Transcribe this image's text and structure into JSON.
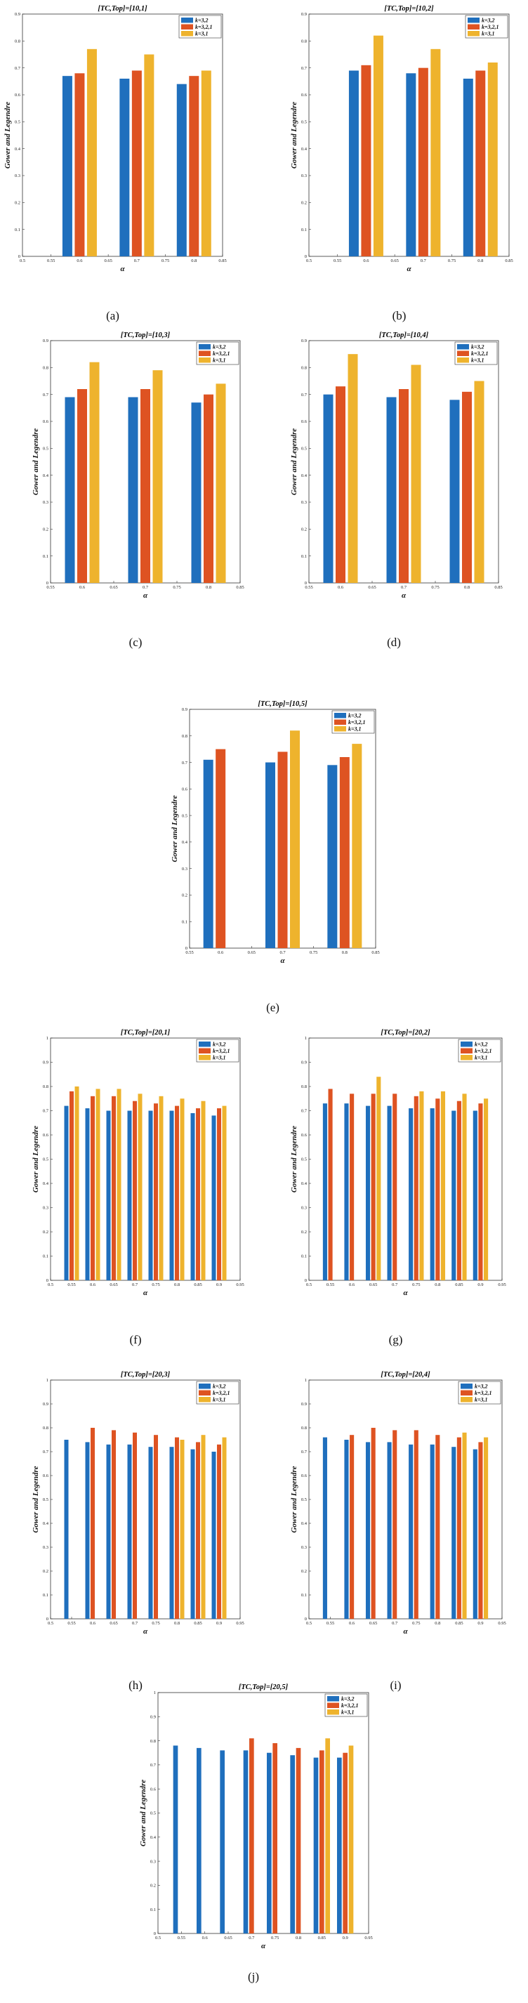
{
  "figure": {
    "colors": {
      "k32": "#1f6fbd",
      "k321": "#de5322",
      "k31": "#eeb32d",
      "axis": "#333333"
    },
    "legend": [
      "k=3,2",
      "k=3,2,1",
      "k=3,1"
    ]
  },
  "chart_data": [
    {
      "type": "bar",
      "caption": "(a)",
      "title": "[TC,Top]=[10,1]",
      "xlabel": "α",
      "ylabel": "Gower and Legendre",
      "xlim": [
        0.5,
        0.85
      ],
      "ylim": [
        0,
        0.9
      ],
      "xticks": [
        "0.5",
        "0.55",
        "0.6",
        "0.65",
        "0.7",
        "0.75",
        "0.8",
        "0.85"
      ],
      "yticks": [
        "0",
        "0.1",
        "0.2",
        "0.3",
        "0.4",
        "0.5",
        "0.6",
        "0.7",
        "0.8",
        "0.9"
      ],
      "categories": [
        0.6,
        0.7,
        0.8
      ],
      "series": [
        {
          "name": "k=3,2",
          "values": [
            0.67,
            0.66,
            0.64
          ]
        },
        {
          "name": "k=3,2,1",
          "values": [
            0.68,
            0.69,
            0.67
          ]
        },
        {
          "name": "k=3,1",
          "values": [
            0.77,
            0.75,
            0.69
          ]
        }
      ]
    },
    {
      "type": "bar",
      "caption": "(b)",
      "title": "[TC,Top]=[10,2]",
      "xlabel": "α",
      "ylabel": "Gower and Legendre",
      "xlim": [
        0.5,
        0.85
      ],
      "ylim": [
        0,
        0.9
      ],
      "xticks": [
        "0.5",
        "0.55",
        "0.6",
        "0.65",
        "0.7",
        "0.75",
        "0.8",
        "0.85"
      ],
      "yticks": [
        "0",
        "0.1",
        "0.2",
        "0.3",
        "0.4",
        "0.5",
        "0.6",
        "0.7",
        "0.8",
        "0.9"
      ],
      "categories": [
        0.6,
        0.7,
        0.8
      ],
      "series": [
        {
          "name": "k=3,2",
          "values": [
            0.69,
            0.68,
            0.66
          ]
        },
        {
          "name": "k=3,2,1",
          "values": [
            0.71,
            0.7,
            0.69
          ]
        },
        {
          "name": "k=3,1",
          "values": [
            0.82,
            0.77,
            0.72
          ]
        }
      ]
    },
    {
      "type": "bar",
      "caption": "(c)",
      "title": "[TC,Top]=[10,3]",
      "xlabel": "α",
      "ylabel": "Gower and Legendre",
      "xlim": [
        0.55,
        0.85
      ],
      "ylim": [
        0,
        0.9
      ],
      "xticks": [
        "0.55",
        "0.6",
        "0.65",
        "0.7",
        "0.75",
        "0.8",
        "0.85"
      ],
      "yticks": [
        "0",
        "0.1",
        "0.2",
        "0.3",
        "0.4",
        "0.5",
        "0.6",
        "0.7",
        "0.8",
        "0.9"
      ],
      "categories": [
        0.6,
        0.7,
        0.8
      ],
      "series": [
        {
          "name": "k=3,2",
          "values": [
            0.69,
            0.69,
            0.67
          ]
        },
        {
          "name": "k=3,2,1",
          "values": [
            0.72,
            0.72,
            0.7
          ]
        },
        {
          "name": "k=3,1",
          "values": [
            0.82,
            0.79,
            0.74
          ]
        }
      ]
    },
    {
      "type": "bar",
      "caption": "(d)",
      "title": "[TC,Top]=[10,4]",
      "xlabel": "α",
      "ylabel": "Gower and Legendre",
      "xlim": [
        0.55,
        0.85
      ],
      "ylim": [
        0,
        0.9
      ],
      "xticks": [
        "0.55",
        "0.6",
        "0.65",
        "0.7",
        "0.75",
        "0.8",
        "0.85"
      ],
      "yticks": [
        "0",
        "0.1",
        "0.2",
        "0.3",
        "0.4",
        "0.5",
        "0.6",
        "0.7",
        "0.8",
        "0.9"
      ],
      "categories": [
        0.6,
        0.7,
        0.8
      ],
      "series": [
        {
          "name": "k=3,2",
          "values": [
            0.7,
            0.69,
            0.68
          ]
        },
        {
          "name": "k=3,2,1",
          "values": [
            0.73,
            0.72,
            0.71
          ]
        },
        {
          "name": "k=3,1",
          "values": [
            0.85,
            0.81,
            0.75
          ]
        }
      ]
    },
    {
      "type": "bar",
      "caption": "(e)",
      "title": "[TC,Top]=[10,5]",
      "xlabel": "α",
      "ylabel": "Gower and Legendre",
      "xlim": [
        0.55,
        0.85
      ],
      "ylim": [
        0,
        0.9
      ],
      "xticks": [
        "0.55",
        "0.6",
        "0.65",
        "0.7",
        "0.75",
        "0.8",
        "0.85"
      ],
      "yticks": [
        "0",
        "0.1",
        "0.2",
        "0.3",
        "0.4",
        "0.5",
        "0.6",
        "0.7",
        "0.8",
        "0.9"
      ],
      "categories": [
        0.6,
        0.7,
        0.8
      ],
      "series": [
        {
          "name": "k=3,2",
          "values": [
            0.71,
            0.7,
            0.69
          ]
        },
        {
          "name": "k=3,2,1",
          "values": [
            0.75,
            0.74,
            0.72
          ]
        },
        {
          "name": "k=3,1",
          "values": [
            null,
            0.82,
            0.77
          ]
        }
      ]
    },
    {
      "type": "bar",
      "caption": "(f)",
      "title": "[TC,Top]=[20,1]",
      "xlabel": "α",
      "ylabel": "Gower and Legendre",
      "xlim": [
        0.5,
        0.95
      ],
      "ylim": [
        0,
        1
      ],
      "xticks": [
        "0.5",
        "0.55",
        "0.6",
        "0.65",
        "0.7",
        "0.75",
        "0.8",
        "0.85",
        "0.9",
        "0.95"
      ],
      "yticks": [
        "0",
        "0.1",
        "0.2",
        "0.3",
        "0.4",
        "0.5",
        "0.6",
        "0.7",
        "0.8",
        "0.9",
        "1"
      ],
      "categories": [
        0.55,
        0.6,
        0.65,
        0.7,
        0.75,
        0.8,
        0.85,
        0.9
      ],
      "series": [
        {
          "name": "k=3,2",
          "values": [
            0.72,
            0.71,
            0.7,
            0.7,
            0.7,
            0.7,
            0.69,
            0.68
          ]
        },
        {
          "name": "k=3,2,1",
          "values": [
            0.78,
            0.76,
            0.76,
            0.74,
            0.73,
            0.72,
            0.71,
            0.71
          ]
        },
        {
          "name": "k=3,1",
          "values": [
            0.8,
            0.79,
            0.79,
            0.77,
            0.76,
            0.75,
            0.74,
            0.72
          ]
        }
      ]
    },
    {
      "type": "bar",
      "caption": "(g)",
      "title": "[TC,Top]=[20,2]",
      "xlabel": "α",
      "ylabel": "Gower and Legendre",
      "xlim": [
        0.5,
        0.95
      ],
      "ylim": [
        0,
        1
      ],
      "xticks": [
        "0.5",
        "0.55",
        "0.6",
        "0.65",
        "0.7",
        "0.75",
        "0.8",
        "0.85",
        "0.9",
        "0.95"
      ],
      "yticks": [
        "0",
        "0.1",
        "0.2",
        "0.3",
        "0.4",
        "0.5",
        "0.6",
        "0.7",
        "0.8",
        "0.9",
        "1"
      ],
      "categories": [
        0.55,
        0.6,
        0.65,
        0.7,
        0.75,
        0.8,
        0.85,
        0.9
      ],
      "series": [
        {
          "name": "k=3,2",
          "values": [
            0.73,
            0.73,
            0.72,
            0.72,
            0.71,
            0.71,
            0.7,
            0.7
          ]
        },
        {
          "name": "k=3,2,1",
          "values": [
            0.79,
            0.77,
            0.77,
            0.77,
            0.76,
            0.75,
            0.74,
            0.73
          ]
        },
        {
          "name": "k=3,1",
          "values": [
            null,
            null,
            0.84,
            null,
            0.78,
            0.78,
            0.77,
            0.75
          ]
        }
      ]
    },
    {
      "type": "bar",
      "caption": "(h)",
      "title": "[TC,Top]=[20,3]",
      "xlabel": "α",
      "ylabel": "Gower and Legendre",
      "xlim": [
        0.5,
        0.95
      ],
      "ylim": [
        0,
        1
      ],
      "xticks": [
        "0.5",
        "0.55",
        "0.6",
        "0.65",
        "0.7",
        "0.75",
        "0.8",
        "0.85",
        "0.9",
        "0.95"
      ],
      "yticks": [
        "0",
        "0.1",
        "0.2",
        "0.3",
        "0.4",
        "0.5",
        "0.6",
        "0.7",
        "0.8",
        "0.9",
        "1"
      ],
      "categories": [
        0.55,
        0.6,
        0.65,
        0.7,
        0.75,
        0.8,
        0.85,
        0.9
      ],
      "series": [
        {
          "name": "k=3,2",
          "values": [
            0.75,
            0.74,
            0.73,
            0.73,
            0.72,
            0.72,
            0.71,
            0.7
          ]
        },
        {
          "name": "k=3,2,1",
          "values": [
            null,
            0.8,
            0.79,
            0.78,
            0.77,
            0.76,
            0.74,
            0.73
          ]
        },
        {
          "name": "k=3,1",
          "values": [
            null,
            null,
            null,
            null,
            null,
            0.75,
            0.77,
            0.76
          ]
        }
      ]
    },
    {
      "type": "bar",
      "caption": "(i)",
      "title": "[TC,Top]=[20,4]",
      "xlabel": "α",
      "ylabel": "Gower and Legendre",
      "xlim": [
        0.5,
        0.95
      ],
      "ylim": [
        0,
        1
      ],
      "xticks": [
        "0.5",
        "0.55",
        "0.6",
        "0.65",
        "0.7",
        "0.75",
        "0.8",
        "0.85",
        "0.9",
        "0.95"
      ],
      "yticks": [
        "0",
        "0.1",
        "0.2",
        "0.3",
        "0.4",
        "0.5",
        "0.6",
        "0.7",
        "0.8",
        "0.9",
        "1"
      ],
      "categories": [
        0.55,
        0.6,
        0.65,
        0.7,
        0.75,
        0.8,
        0.85,
        0.9
      ],
      "series": [
        {
          "name": "k=3,2",
          "values": [
            0.76,
            0.75,
            0.74,
            0.74,
            0.73,
            0.73,
            0.72,
            0.71
          ]
        },
        {
          "name": "k=3,2,1",
          "values": [
            null,
            0.77,
            0.8,
            0.79,
            0.79,
            0.77,
            0.76,
            0.74
          ]
        },
        {
          "name": "k=3,1",
          "values": [
            null,
            null,
            null,
            null,
            null,
            null,
            0.78,
            0.76
          ]
        }
      ]
    },
    {
      "type": "bar",
      "caption": "(j)",
      "title": "[TC,Top]=[20,5]",
      "xlabel": "α",
      "ylabel": "Gower and Legendre",
      "xlim": [
        0.5,
        0.95
      ],
      "ylim": [
        0,
        1
      ],
      "xticks": [
        "0.5",
        "0.55",
        "0.6",
        "0.65",
        "0.7",
        "0.75",
        "0.8",
        "0.85",
        "0.9",
        "0.95"
      ],
      "yticks": [
        "0",
        "0.1",
        "0.2",
        "0.3",
        "0.4",
        "0.5",
        "0.6",
        "0.7",
        "0.8",
        "0.9",
        "1"
      ],
      "categories": [
        0.55,
        0.6,
        0.65,
        0.7,
        0.75,
        0.8,
        0.85,
        0.9
      ],
      "series": [
        {
          "name": "k=3,2",
          "values": [
            0.78,
            0.77,
            0.76,
            0.76,
            0.75,
            0.74,
            0.73,
            0.73
          ]
        },
        {
          "name": "k=3,2,1",
          "values": [
            null,
            null,
            null,
            0.81,
            0.79,
            0.77,
            0.76,
            0.75
          ]
        },
        {
          "name": "k=3,1",
          "values": [
            null,
            null,
            null,
            null,
            null,
            null,
            0.81,
            0.78
          ]
        }
      ]
    }
  ]
}
